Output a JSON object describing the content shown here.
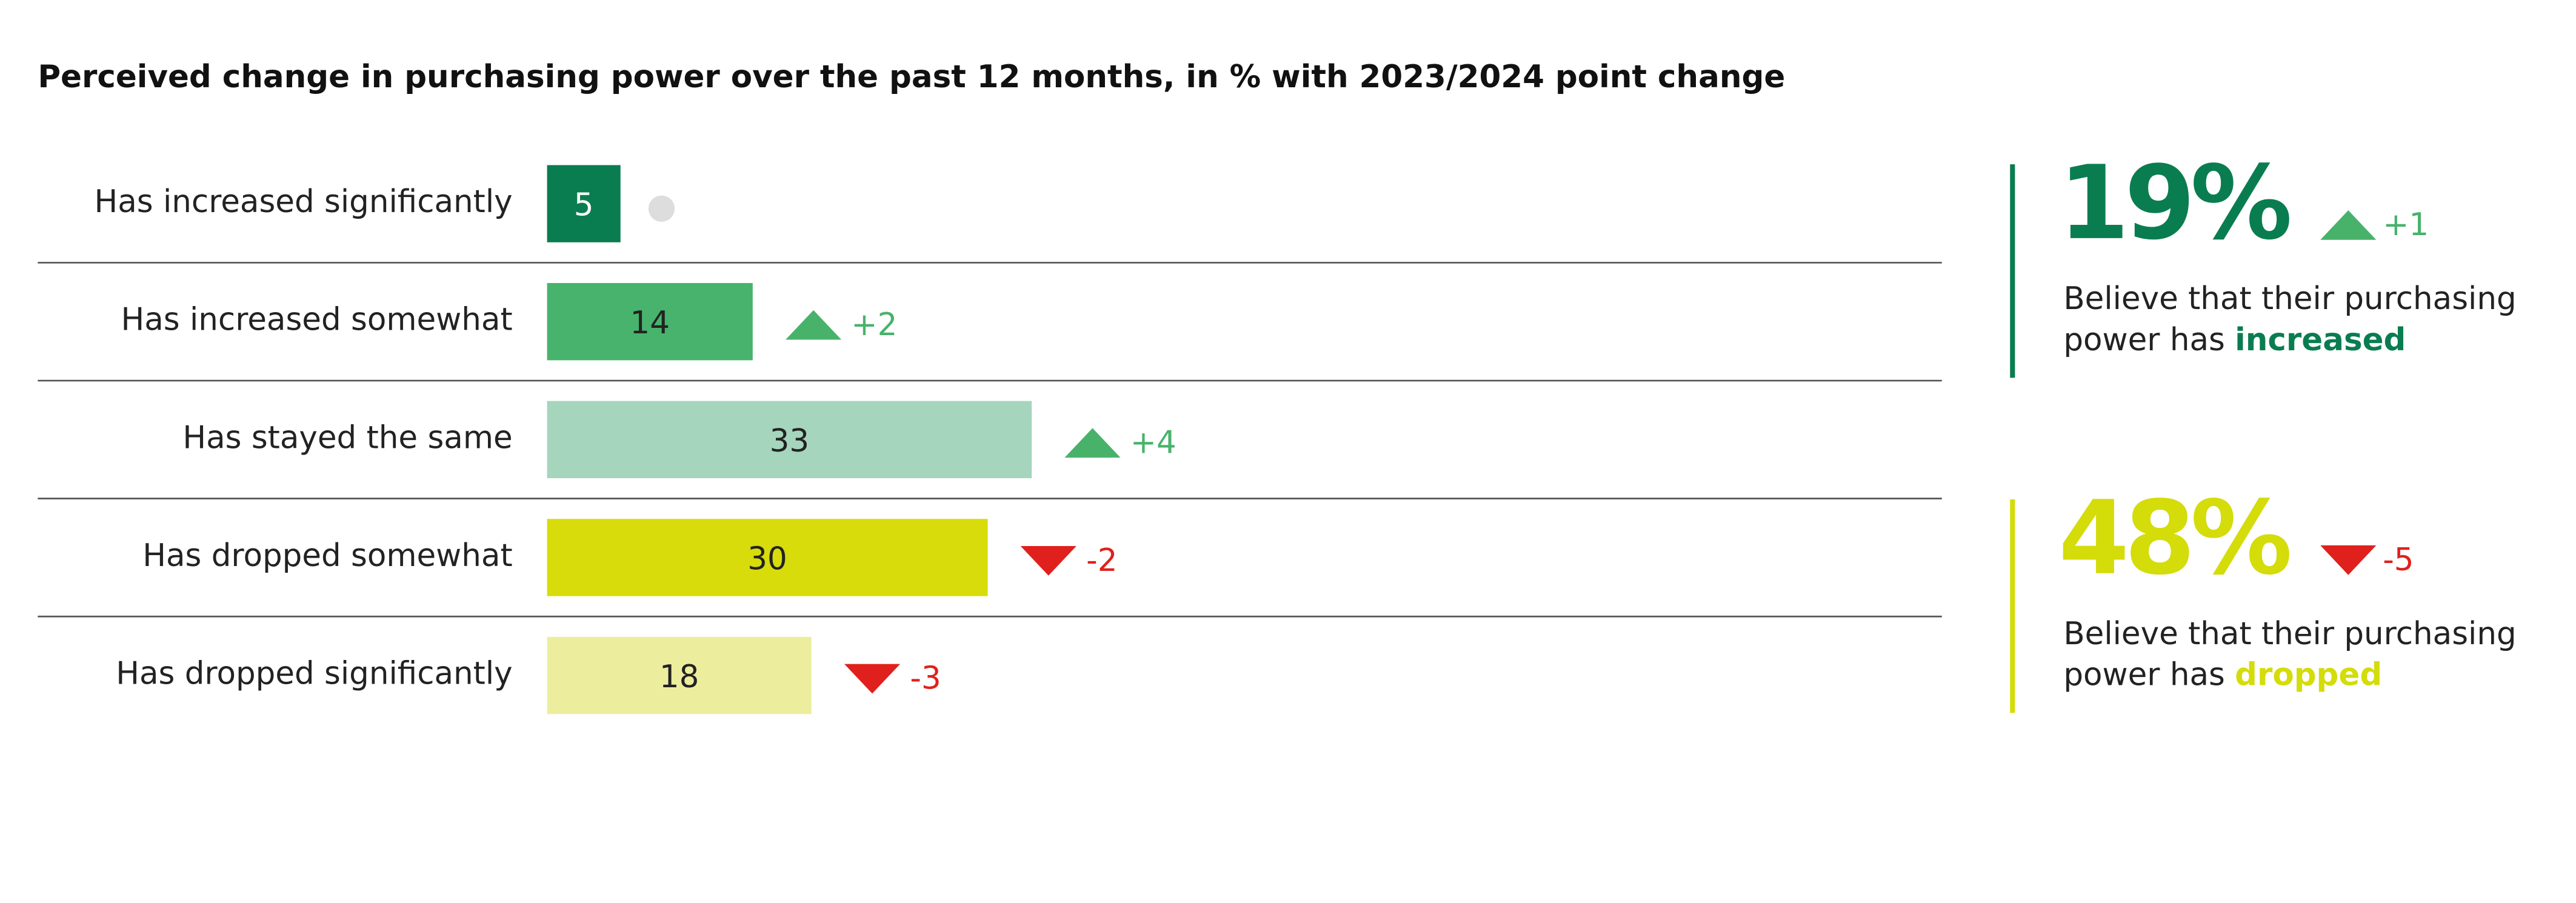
{
  "chart_data": {
    "type": "bar",
    "title": "Perceived change in purchasing power over the past 12 months, in % with 2023/2024 point change",
    "categories": [
      "Has increased significantly",
      "Has increased somewhat",
      "Has stayed the same",
      "Has dropped somewhat",
      "Has dropped significantly"
    ],
    "values": [
      5,
      14,
      33,
      30,
      18
    ],
    "colors": [
      "#0a7d50",
      "#47b36c",
      "#a5d5bd",
      "#d7dc0a",
      "#ecee9e"
    ],
    "changes": [
      0,
      2,
      4,
      -2,
      -3
    ],
    "change_labels": [
      null,
      "+2",
      "+4",
      "-2",
      "-3"
    ]
  },
  "summary": [
    {
      "label": "19%",
      "change_label": "+1",
      "direction": "up",
      "text_lines": [
        "Believe that their purchasing",
        "power has"
      ],
      "highlight": "increased",
      "color": "#0a7d50"
    },
    {
      "label": "48%",
      "change_label": "-5",
      "direction": "down",
      "text_lines": [
        "Believe that their purchasing",
        "power has"
      ],
      "highlight": "dropped",
      "color": "#d4dc0a"
    }
  ]
}
